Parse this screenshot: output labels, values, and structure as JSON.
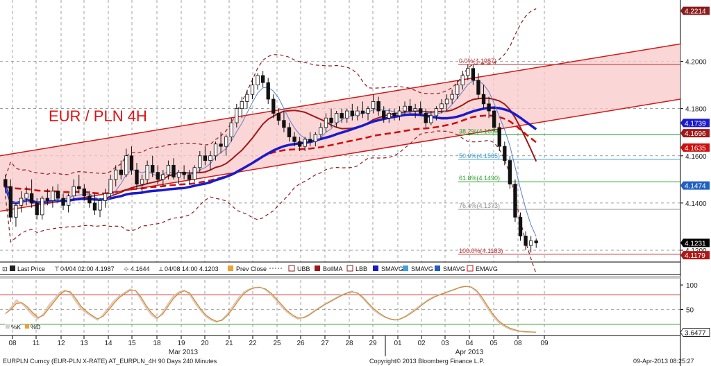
{
  "colors": {
    "bull": "#ffffff",
    "bear": "#111111",
    "channel_fill": "#f8c8c8",
    "channel_line": "#d01818",
    "boll_dash": "#8b1c1c",
    "bollma": "#a01818",
    "smavg_fast": "#5b7fd0",
    "smavg_slow": "#1a1acc",
    "emavg": "#cc1010",
    "fib_green": "#2aa02a",
    "fib_blue": "#40a0d0",
    "stoch_k": "#f0a070",
    "stoch_d": "#d08830"
  },
  "chart_data": {
    "type": "candlestick",
    "title": "EUR / PLN 4H",
    "x_labels": [
      "08",
      "11",
      "12",
      "13",
      "14",
      "15",
      "18",
      "19",
      "20",
      "21",
      "22",
      "25",
      "26",
      "27",
      "28",
      "29",
      "01",
      "02",
      "03",
      "04",
      "05",
      "08",
      "09"
    ],
    "months": [
      "Mar 2013",
      "Apr 2013"
    ],
    "y_ticks": [
      "4.2000",
      "4.1800",
      "4.1600",
      "4.1400",
      "4.1200"
    ],
    "ylim": [
      4.115,
      4.226
    ],
    "price_tags": [
      {
        "label": "4.2214",
        "value": 4.2214,
        "color": "#8b1c1c"
      },
      {
        "label": "4.1739",
        "value": 4.1739,
        "color": "#1a1acc"
      },
      {
        "label": "4.1696",
        "value": 4.1696,
        "color": "#a01818"
      },
      {
        "label": "4.1635",
        "value": 4.1635,
        "color": "#cc1010"
      },
      {
        "label": "4.1474",
        "value": 4.1474,
        "color": "#2060c0"
      },
      {
        "label": "4.1231",
        "value": 4.1231,
        "color": "#000000"
      },
      {
        "label": "4.1179",
        "value": 4.1179,
        "color": "#b01818"
      }
    ],
    "fib_levels": [
      {
        "label": "0.0%(4.1987)",
        "value": 4.1987,
        "color": "#c03030"
      },
      {
        "label": "38.2%(4.1689)",
        "value": 4.1689,
        "color": "#2aa02a"
      },
      {
        "label": "50.0%(4.1585)",
        "value": 4.1585,
        "color": "#40a0d0"
      },
      {
        "label": "61.8%(4.1490)",
        "value": 4.149,
        "color": "#2aa02a"
      },
      {
        "label": "76.4%(4.1373)",
        "value": 4.1373,
        "color": "#909090"
      },
      {
        "label": "100.0%(4.1183)",
        "value": 4.1183,
        "color": "#c03030"
      }
    ],
    "candles": [
      [
        4.15,
        4.152,
        4.144,
        4.147
      ],
      [
        4.147,
        4.15,
        4.132,
        4.134
      ],
      [
        4.134,
        4.14,
        4.13,
        4.139
      ],
      [
        4.139,
        4.145,
        4.136,
        4.142
      ],
      [
        4.142,
        4.147,
        4.139,
        4.144
      ],
      [
        4.144,
        4.15,
        4.138,
        4.14
      ],
      [
        4.14,
        4.142,
        4.133,
        4.135
      ],
      [
        4.135,
        4.143,
        4.133,
        4.142
      ],
      [
        4.142,
        4.146,
        4.139,
        4.141
      ],
      [
        4.141,
        4.147,
        4.138,
        4.145
      ],
      [
        4.145,
        4.148,
        4.14,
        4.142
      ],
      [
        4.142,
        4.144,
        4.137,
        4.139
      ],
      [
        4.139,
        4.144,
        4.136,
        4.143
      ],
      [
        4.143,
        4.15,
        4.141,
        4.147
      ],
      [
        4.147,
        4.152,
        4.144,
        4.146
      ],
      [
        4.146,
        4.148,
        4.141,
        4.143
      ],
      [
        4.143,
        4.145,
        4.138,
        4.14
      ],
      [
        4.14,
        4.144,
        4.135,
        4.137
      ],
      [
        4.137,
        4.142,
        4.134,
        4.141
      ],
      [
        4.141,
        4.146,
        4.138,
        4.144
      ],
      [
        4.144,
        4.152,
        4.142,
        4.15
      ],
      [
        4.15,
        4.156,
        4.147,
        4.154
      ],
      [
        4.154,
        4.158,
        4.15,
        4.152
      ],
      [
        4.152,
        4.163,
        4.151,
        4.16
      ],
      [
        4.16,
        4.164,
        4.152,
        4.154
      ],
      [
        4.154,
        4.157,
        4.146,
        4.148
      ],
      [
        4.148,
        4.152,
        4.144,
        4.15
      ],
      [
        4.15,
        4.158,
        4.148,
        4.156
      ],
      [
        4.156,
        4.16,
        4.151,
        4.153
      ],
      [
        4.153,
        4.156,
        4.148,
        4.15
      ],
      [
        4.15,
        4.154,
        4.147,
        4.152
      ],
      [
        4.152,
        4.158,
        4.15,
        4.156
      ],
      [
        4.156,
        4.159,
        4.15,
        4.151
      ],
      [
        4.151,
        4.154,
        4.148,
        4.153
      ],
      [
        4.153,
        4.156,
        4.15,
        4.152
      ],
      [
        4.152,
        4.154,
        4.148,
        4.15
      ],
      [
        4.15,
        4.156,
        4.149,
        4.155
      ],
      [
        4.155,
        4.162,
        4.153,
        4.16
      ],
      [
        4.16,
        4.164,
        4.156,
        4.158
      ],
      [
        4.158,
        4.162,
        4.154,
        4.16
      ],
      [
        4.16,
        4.166,
        4.158,
        4.165
      ],
      [
        4.165,
        4.17,
        4.161,
        4.164
      ],
      [
        4.164,
        4.169,
        4.16,
        4.168
      ],
      [
        4.168,
        4.176,
        4.166,
        4.174
      ],
      [
        4.174,
        4.182,
        4.172,
        4.18
      ],
      [
        4.18,
        4.185,
        4.176,
        4.183
      ],
      [
        4.183,
        4.188,
        4.18,
        4.186
      ],
      [
        4.186,
        4.193,
        4.184,
        4.19
      ],
      [
        4.19,
        4.195,
        4.188,
        4.194
      ],
      [
        4.194,
        4.196,
        4.189,
        4.191
      ],
      [
        4.191,
        4.193,
        4.182,
        4.184
      ],
      [
        4.184,
        4.186,
        4.176,
        4.178
      ],
      [
        4.178,
        4.18,
        4.173,
        4.175
      ],
      [
        4.175,
        4.179,
        4.17,
        4.172
      ],
      [
        4.172,
        4.174,
        4.166,
        4.168
      ],
      [
        4.168,
        4.17,
        4.164,
        4.166
      ],
      [
        4.166,
        4.168,
        4.162,
        4.164
      ],
      [
        4.164,
        4.168,
        4.162,
        4.167
      ],
      [
        4.167,
        4.17,
        4.164,
        4.166
      ],
      [
        4.166,
        4.17,
        4.164,
        4.169
      ],
      [
        4.169,
        4.174,
        4.167,
        4.172
      ],
      [
        4.172,
        4.178,
        4.17,
        4.176
      ],
      [
        4.176,
        4.18,
        4.172,
        4.174
      ],
      [
        4.174,
        4.179,
        4.172,
        4.178
      ],
      [
        4.178,
        4.18,
        4.174,
        4.176
      ],
      [
        4.176,
        4.18,
        4.174,
        4.179
      ],
      [
        4.179,
        4.182,
        4.175,
        4.177
      ],
      [
        4.177,
        4.181,
        4.175,
        4.179
      ],
      [
        4.179,
        4.183,
        4.176,
        4.178
      ],
      [
        4.178,
        4.181,
        4.175,
        4.18
      ],
      [
        4.18,
        4.186,
        4.178,
        4.183
      ],
      [
        4.183,
        4.185,
        4.177,
        4.179
      ],
      [
        4.179,
        4.181,
        4.174,
        4.176
      ],
      [
        4.176,
        4.18,
        4.174,
        4.178
      ],
      [
        4.178,
        4.18,
        4.175,
        4.177
      ],
      [
        4.177,
        4.181,
        4.175,
        4.179
      ],
      [
        4.179,
        4.183,
        4.177,
        4.181
      ],
      [
        4.181,
        4.184,
        4.178,
        4.179
      ],
      [
        4.179,
        4.182,
        4.176,
        4.18
      ],
      [
        4.18,
        4.183,
        4.177,
        4.178
      ],
      [
        4.178,
        4.18,
        4.172,
        4.174
      ],
      [
        4.174,
        4.179,
        4.173,
        4.177
      ],
      [
        4.177,
        4.181,
        4.175,
        4.18
      ],
      [
        4.18,
        4.184,
        4.178,
        4.182
      ],
      [
        4.182,
        4.186,
        4.179,
        4.184
      ],
      [
        4.184,
        4.188,
        4.182,
        4.186
      ],
      [
        4.186,
        4.192,
        4.184,
        4.19
      ],
      [
        4.19,
        4.196,
        4.188,
        4.194
      ],
      [
        4.194,
        4.1987,
        4.192,
        4.197
      ],
      [
        4.197,
        4.1987,
        4.19,
        4.192
      ],
      [
        4.192,
        4.195,
        4.184,
        4.186
      ],
      [
        4.186,
        4.19,
        4.18,
        4.182
      ],
      [
        4.182,
        4.185,
        4.176,
        4.179
      ],
      [
        4.179,
        4.181,
        4.17,
        4.172
      ],
      [
        4.172,
        4.174,
        4.162,
        4.164
      ],
      [
        4.164,
        4.166,
        4.156,
        4.158
      ],
      [
        4.158,
        4.16,
        4.146,
        4.148
      ],
      [
        4.148,
        4.15,
        4.132,
        4.134
      ],
      [
        4.134,
        4.136,
        4.124,
        4.126
      ],
      [
        4.126,
        4.128,
        4.12,
        4.122
      ],
      [
        4.122,
        4.126,
        4.119,
        4.124
      ],
      [
        4.124,
        4.125,
        4.121,
        4.1231
      ]
    ],
    "stochastic": {
      "ylim": [
        0,
        110
      ],
      "y_ticks": [
        "100",
        "50"
      ],
      "last_value": "3.6477",
      "levels": [
        80,
        20
      ],
      "k": [
        40,
        55,
        70,
        62,
        50,
        38,
        30,
        42,
        60,
        72,
        85,
        90,
        82,
        65,
        50,
        42,
        35,
        28,
        40,
        55,
        68,
        78,
        85,
        92,
        88,
        70,
        52,
        38,
        30,
        45,
        62,
        78,
        86,
        90,
        80,
        62,
        48,
        35,
        28,
        24,
        30,
        42,
        58,
        74,
        86,
        92,
        95,
        96,
        90,
        80,
        68,
        55,
        44,
        36,
        30,
        34,
        40,
        48,
        55,
        62,
        68,
        74,
        80,
        84,
        88,
        82,
        72,
        60,
        48,
        40,
        34,
        30,
        28,
        32,
        38,
        46,
        54,
        62,
        70,
        76,
        80,
        84,
        88,
        92,
        96,
        98,
        95,
        86,
        70,
        52,
        36,
        24,
        16,
        10,
        7,
        5,
        4,
        4,
        3.6
      ],
      "d": [
        42,
        50,
        62,
        64,
        56,
        44,
        34,
        38,
        52,
        66,
        80,
        88,
        86,
        72,
        56,
        46,
        38,
        31,
        36,
        48,
        62,
        74,
        82,
        89,
        89,
        76,
        58,
        43,
        33,
        40,
        56,
        72,
        83,
        88,
        84,
        68,
        52,
        39,
        31,
        26,
        28,
        38,
        52,
        68,
        82,
        90,
        94,
        95,
        92,
        84,
        72,
        60,
        48,
        39,
        33,
        33,
        38,
        46,
        53,
        60,
        66,
        72,
        78,
        83,
        86,
        84,
        75,
        63,
        52,
        43,
        36,
        31,
        29,
        31,
        36,
        43,
        51,
        60,
        68,
        74,
        79,
        83,
        87,
        91,
        95,
        97,
        96,
        89,
        75,
        58,
        41,
        28,
        19,
        13,
        9,
        6,
        5,
        4.5,
        4.0
      ]
    }
  },
  "legend": {
    "last_price": "Last Price",
    "hl1": "04/04 02:00 4.1987",
    "mid": "4.1644",
    "hl2": "04/08 14:00 4.1203",
    "prev_close": "Prev Close",
    "ubb": "UBB",
    "bollma": "BollMA",
    "lbb": "LBB",
    "smavg1": "SMAVG",
    "smavg2": "SMAVG",
    "smavg3": "SMAVG",
    "emavg": "EMAVG"
  },
  "stoch_legend": {
    "k": "%K",
    "d": "%D"
  },
  "footer": {
    "left": "EURPLN Curncy (EUR-PLN X-RATE) AT_EURPLN_4H 90 Days 240 Minutes",
    "center": "Copyright© 2013 Bloomberg Finance L.P.",
    "right": "09-Apr-2013 08:25:27"
  }
}
